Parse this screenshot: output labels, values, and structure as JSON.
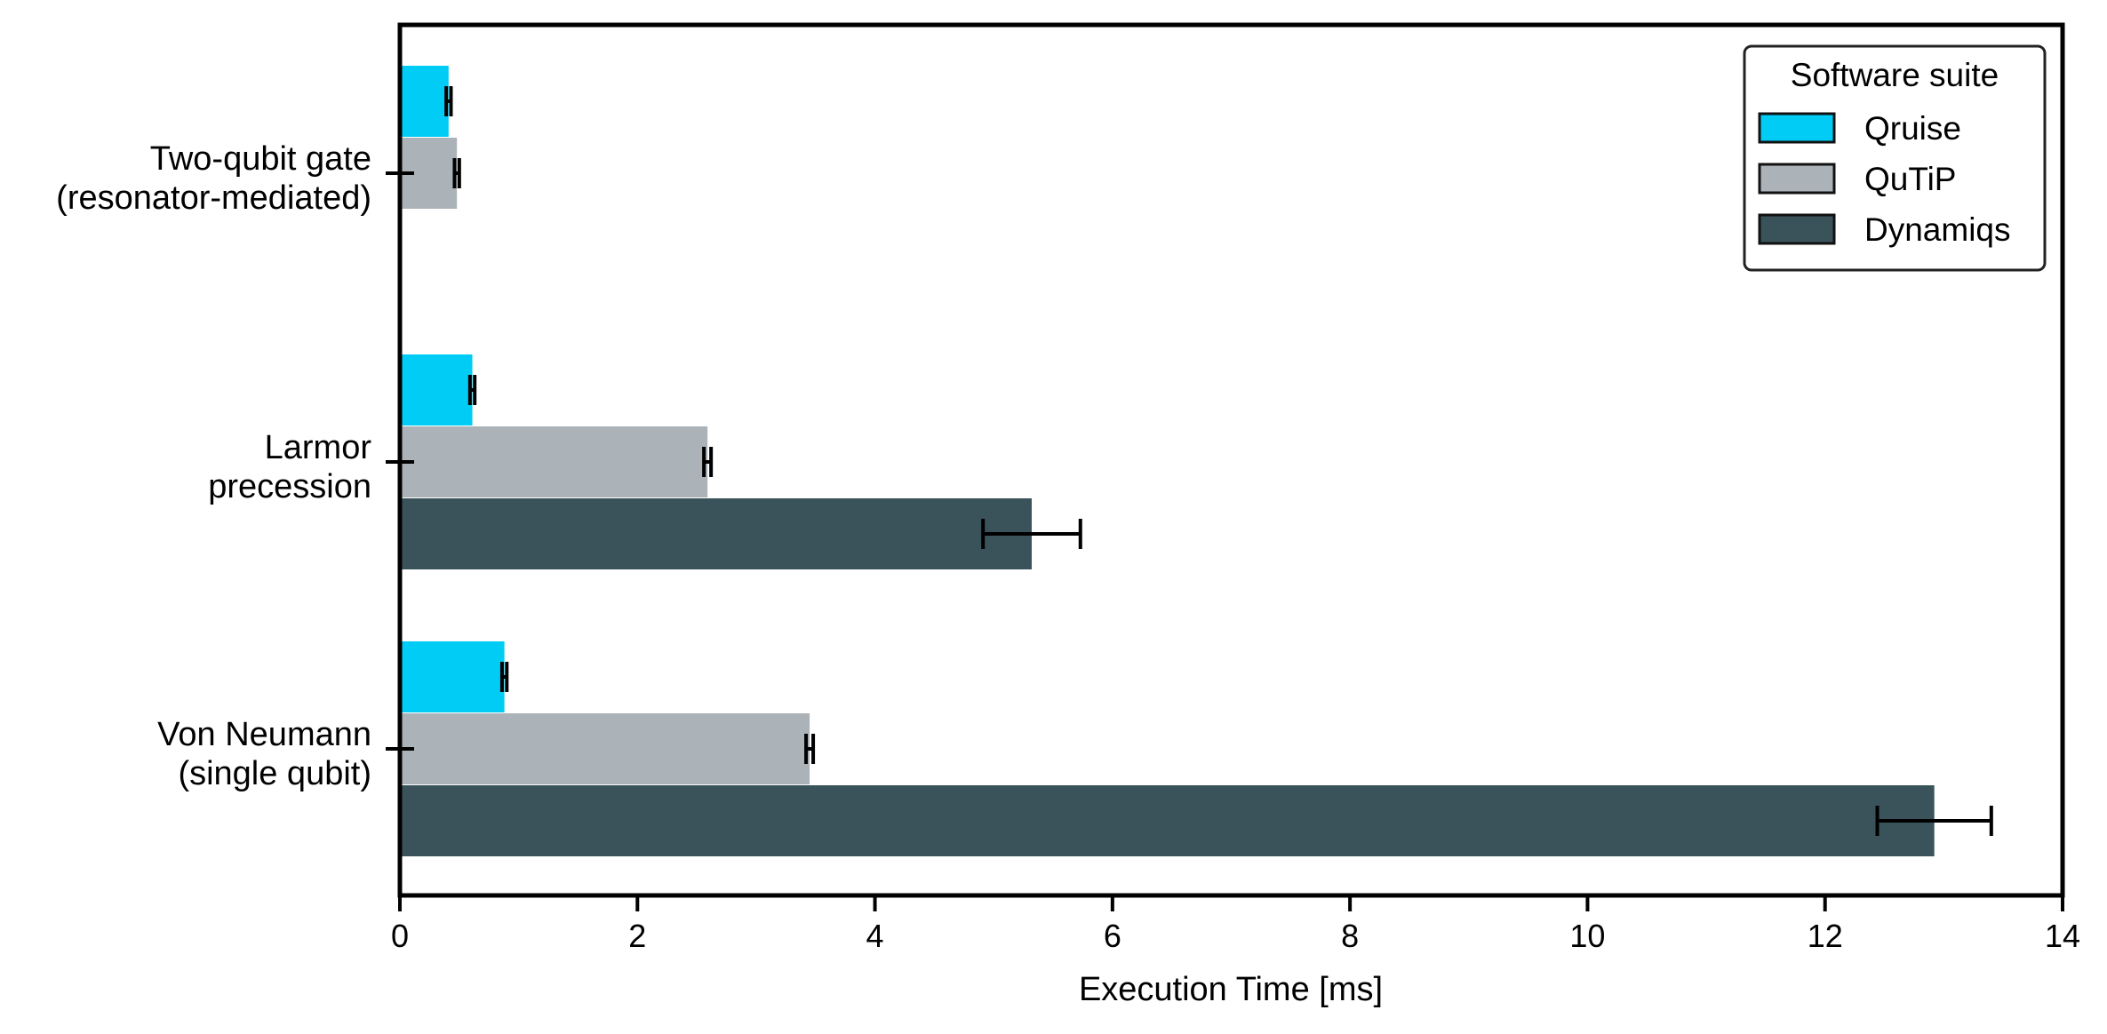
{
  "chart_data": {
    "type": "bar",
    "orientation": "horizontal",
    "categories": [
      [
        "Two-qubit gate",
        "(resonator-mediated)"
      ],
      [
        "Larmor",
        "precession"
      ],
      [
        "Von Neumann",
        "(single qubit)"
      ]
    ],
    "series": [
      {
        "name": "Qruise",
        "color": "#00ccf5",
        "values": [
          0.41,
          0.61,
          0.88
        ],
        "errors": [
          0.02,
          0.02,
          0.02
        ]
      },
      {
        "name": "QuTiP",
        "color": "#abb3b8",
        "values": [
          0.48,
          2.59,
          3.45
        ],
        "errors": [
          0.02,
          0.03,
          0.03
        ]
      },
      {
        "name": "Dynamiqs",
        "color": "#3a535b",
        "values": [
          null,
          5.32,
          12.92
        ],
        "errors": [
          null,
          0.41,
          0.48
        ]
      }
    ],
    "xlabel": "Execution Time [ms]",
    "ylabel": "",
    "xlim": [
      0,
      14
    ],
    "xticks": [
      "0",
      "2",
      "4",
      "6",
      "8",
      "10",
      "12",
      "14"
    ],
    "grid": false,
    "legend": {
      "title": "Software suite",
      "placement": "top-right"
    }
  }
}
